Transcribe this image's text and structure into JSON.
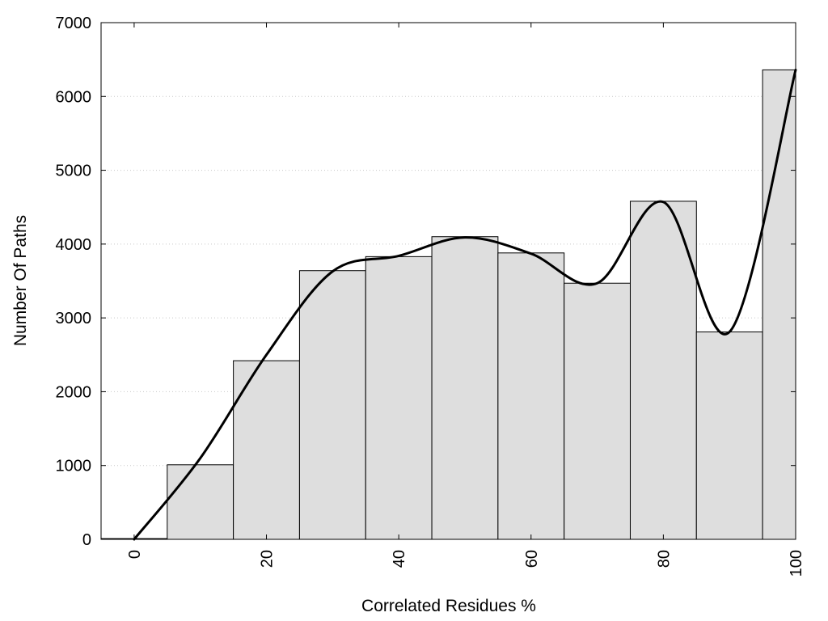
{
  "chart_data": {
    "type": "bar",
    "xlabel": "Correlated Residues %",
    "ylabel": "Number Of Paths",
    "xlim": [
      -5,
      100
    ],
    "ylim": [
      0,
      7000
    ],
    "x_ticks": [
      0,
      20,
      40,
      60,
      80,
      100
    ],
    "y_ticks": [
      0,
      1000,
      2000,
      3000,
      4000,
      5000,
      6000,
      7000
    ],
    "grid": "horizontal dotted",
    "bars": {
      "centers": [
        0,
        10,
        20,
        30,
        40,
        50,
        60,
        70,
        80,
        90,
        100
      ],
      "bin_width": 10,
      "values": [
        10,
        1010,
        2420,
        3640,
        3830,
        4100,
        3880,
        3470,
        4580,
        2810,
        6360
      ],
      "fill": "#dedede",
      "stroke": "#000000"
    },
    "curve": {
      "x": [
        0,
        10,
        20,
        30,
        40,
        50,
        60,
        70,
        80,
        90,
        100
      ],
      "y": [
        0,
        1100,
        2500,
        3630,
        3840,
        4090,
        3870,
        3470,
        4570,
        2810,
        6360
      ],
      "color": "#000000"
    }
  }
}
